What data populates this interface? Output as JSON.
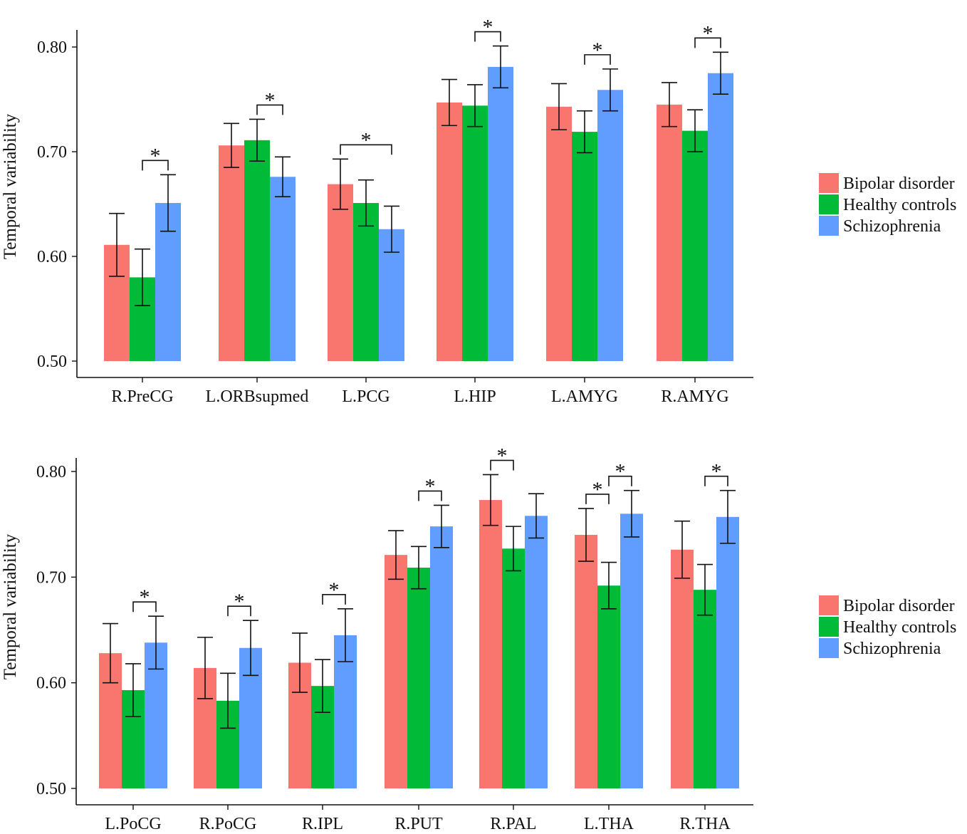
{
  "chart_data": [
    {
      "type": "bar",
      "ylabel": "Temporal variability",
      "ylim": [
        0.5,
        0.8
      ],
      "yticks": [
        "0.50",
        "0.60",
        "0.70",
        "0.80"
      ],
      "categories": [
        "R.PreCG",
        "L.ORBsupmed",
        "L.PCG",
        "L.HIP",
        "L.AMYG",
        "R.AMYG"
      ],
      "series": [
        {
          "name": "Bipolar disorder",
          "color": "#F8766D",
          "values": [
            0.611,
            0.706,
            0.669,
            0.747,
            0.743,
            0.745
          ],
          "errors": [
            0.03,
            0.021,
            0.024,
            0.022,
            0.022,
            0.021
          ]
        },
        {
          "name": "Healthy controls",
          "color": "#00BA38",
          "values": [
            0.58,
            0.711,
            0.651,
            0.744,
            0.719,
            0.72
          ],
          "errors": [
            0.027,
            0.02,
            0.022,
            0.02,
            0.02,
            0.02
          ]
        },
        {
          "name": "Schizophrenia",
          "color": "#619CFF",
          "values": [
            0.651,
            0.676,
            0.626,
            0.781,
            0.759,
            0.775
          ],
          "errors": [
            0.027,
            0.019,
            0.022,
            0.02,
            0.02,
            0.02
          ]
        }
      ],
      "significance": [
        {
          "category": 0,
          "from": 1,
          "to": 2,
          "label": "*"
        },
        {
          "category": 1,
          "from": 1,
          "to": 2,
          "label": "*"
        },
        {
          "category": 2,
          "from": 0,
          "to": 2,
          "label": "*"
        },
        {
          "category": 3,
          "from": 1,
          "to": 2,
          "label": "*"
        },
        {
          "category": 4,
          "from": 1,
          "to": 2,
          "label": "*"
        },
        {
          "category": 5,
          "from": 1,
          "to": 2,
          "label": "*"
        }
      ],
      "legend": {
        "position": "right",
        "entries": [
          "Bipolar disorder",
          "Healthy controls",
          "Schizophrenia"
        ]
      }
    },
    {
      "type": "bar",
      "ylabel": "Temporal variability",
      "ylim": [
        0.5,
        0.8
      ],
      "yticks": [
        "0.50",
        "0.60",
        "0.70",
        "0.80"
      ],
      "categories": [
        "L.PoCG",
        "R.PoCG",
        "R.IPL",
        "R.PUT",
        "R.PAL",
        "L.THA",
        "R.THA"
      ],
      "series": [
        {
          "name": "Bipolar disorder",
          "color": "#F8766D",
          "values": [
            0.628,
            0.614,
            0.619,
            0.721,
            0.773,
            0.74,
            0.726
          ],
          "errors": [
            0.028,
            0.029,
            0.028,
            0.023,
            0.024,
            0.025,
            0.027
          ]
        },
        {
          "name": "Healthy controls",
          "color": "#00BA38",
          "values": [
            0.593,
            0.583,
            0.597,
            0.709,
            0.727,
            0.692,
            0.688
          ],
          "errors": [
            0.025,
            0.026,
            0.025,
            0.02,
            0.021,
            0.022,
            0.024
          ]
        },
        {
          "name": "Schizophrenia",
          "color": "#619CFF",
          "values": [
            0.638,
            0.633,
            0.645,
            0.748,
            0.758,
            0.76,
            0.757
          ],
          "errors": [
            0.025,
            0.026,
            0.025,
            0.02,
            0.021,
            0.022,
            0.025
          ]
        }
      ],
      "significance": [
        {
          "category": 0,
          "from": 1,
          "to": 2,
          "label": "*"
        },
        {
          "category": 1,
          "from": 1,
          "to": 2,
          "label": "*"
        },
        {
          "category": 2,
          "from": 1,
          "to": 2,
          "label": "*"
        },
        {
          "category": 3,
          "from": 1,
          "to": 2,
          "label": "*"
        },
        {
          "category": 4,
          "from": 0,
          "to": 1,
          "label": "*"
        },
        {
          "category": 5,
          "from": 0,
          "to": 1,
          "label": "*"
        },
        {
          "category": 5,
          "from": 1,
          "to": 2,
          "label": "*"
        },
        {
          "category": 6,
          "from": 1,
          "to": 2,
          "label": "*"
        }
      ],
      "legend": {
        "position": "right",
        "entries": [
          "Bipolar disorder",
          "Healthy controls",
          "Schizophrenia"
        ]
      }
    }
  ]
}
